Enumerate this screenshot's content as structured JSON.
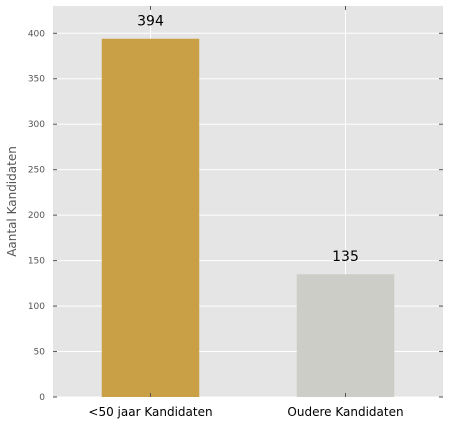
{
  "chart_data": {
    "type": "bar",
    "categories": [
      "<50 jaar Kandidaten",
      "Oudere Kandidaten"
    ],
    "values": [
      394,
      135
    ],
    "data_labels": [
      "394",
      "135"
    ],
    "title": "",
    "xlabel": "",
    "ylabel": "Aantal Kandidaten",
    "ylim": [
      0,
      430
    ],
    "yticks": [
      0,
      50,
      100,
      150,
      200,
      250,
      300,
      350,
      400
    ],
    "grid": true,
    "legend": "none",
    "colors": {
      "bars": [
        "#c9a046",
        "#cdcdc8"
      ],
      "background": "#e5e5e5",
      "grid": "#ffffff"
    }
  }
}
